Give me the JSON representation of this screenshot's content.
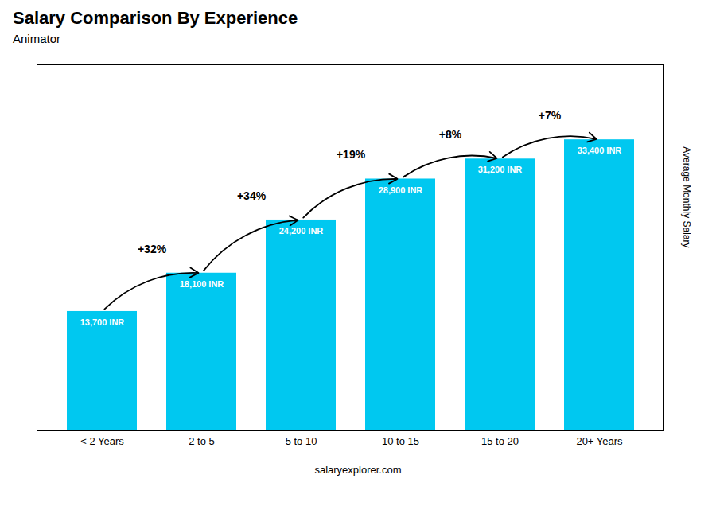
{
  "chart_data": {
    "type": "bar",
    "title": "Salary Comparison By Experience",
    "subtitle": "Animator",
    "caption": "salaryexplorer.com",
    "ylabel": "Average Monthly Salary",
    "categories": [
      "< 2 Years",
      "2 to 5",
      "5 to 10",
      "10 to 15",
      "15 to 20",
      "20+ Years"
    ],
    "values": [
      13700,
      18100,
      24200,
      28900,
      31200,
      33400
    ],
    "value_labels": [
      "13,700 INR",
      "18,100 INR",
      "24,200 INR",
      "28,900 INR",
      "31,200 INR",
      "33,400 INR"
    ],
    "data_labels": true,
    "annotations": [
      "+32%",
      "+34%",
      "+19%",
      "+8%",
      "+7%"
    ],
    "color": "#00c8f0",
    "ylim": [
      0,
      42000
    ],
    "yticks": [],
    "tick_labels": "x",
    "grid": false
  }
}
